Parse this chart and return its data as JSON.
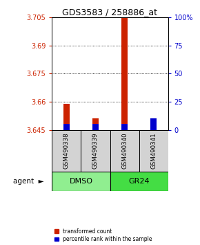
{
  "title": "GDS3583 / 258886_at",
  "samples": [
    "GSM490338",
    "GSM490339",
    "GSM490340",
    "GSM490341"
  ],
  "bar_bg_color": "#D3D3D3",
  "left_ylim": [
    3.645,
    3.705
  ],
  "left_yticks": [
    3.645,
    3.66,
    3.675,
    3.69,
    3.705
  ],
  "right_ylim": [
    0,
    100
  ],
  "right_yticks": [
    0,
    25,
    50,
    75,
    100
  ],
  "right_yticklabels": [
    "0",
    "25",
    "50",
    "75",
    "100%"
  ],
  "red_values": [
    3.659,
    3.651,
    3.705,
    3.6452
  ],
  "blue_values": [
    3.6483,
    3.6483,
    3.6483,
    3.651
  ],
  "red_color": "#CC2200",
  "blue_color": "#0000CC",
  "baseline": 3.645,
  "legend_red": "transformed count",
  "legend_blue": "percentile rank within the sample",
  "left_tick_color": "#CC2200",
  "right_tick_color": "#0000CC",
  "group_info": [
    {
      "start": 0,
      "end": 1,
      "label": "DMSO",
      "color": "#90EE90"
    },
    {
      "start": 2,
      "end": 3,
      "label": "GR24",
      "color": "#44DD44"
    }
  ]
}
